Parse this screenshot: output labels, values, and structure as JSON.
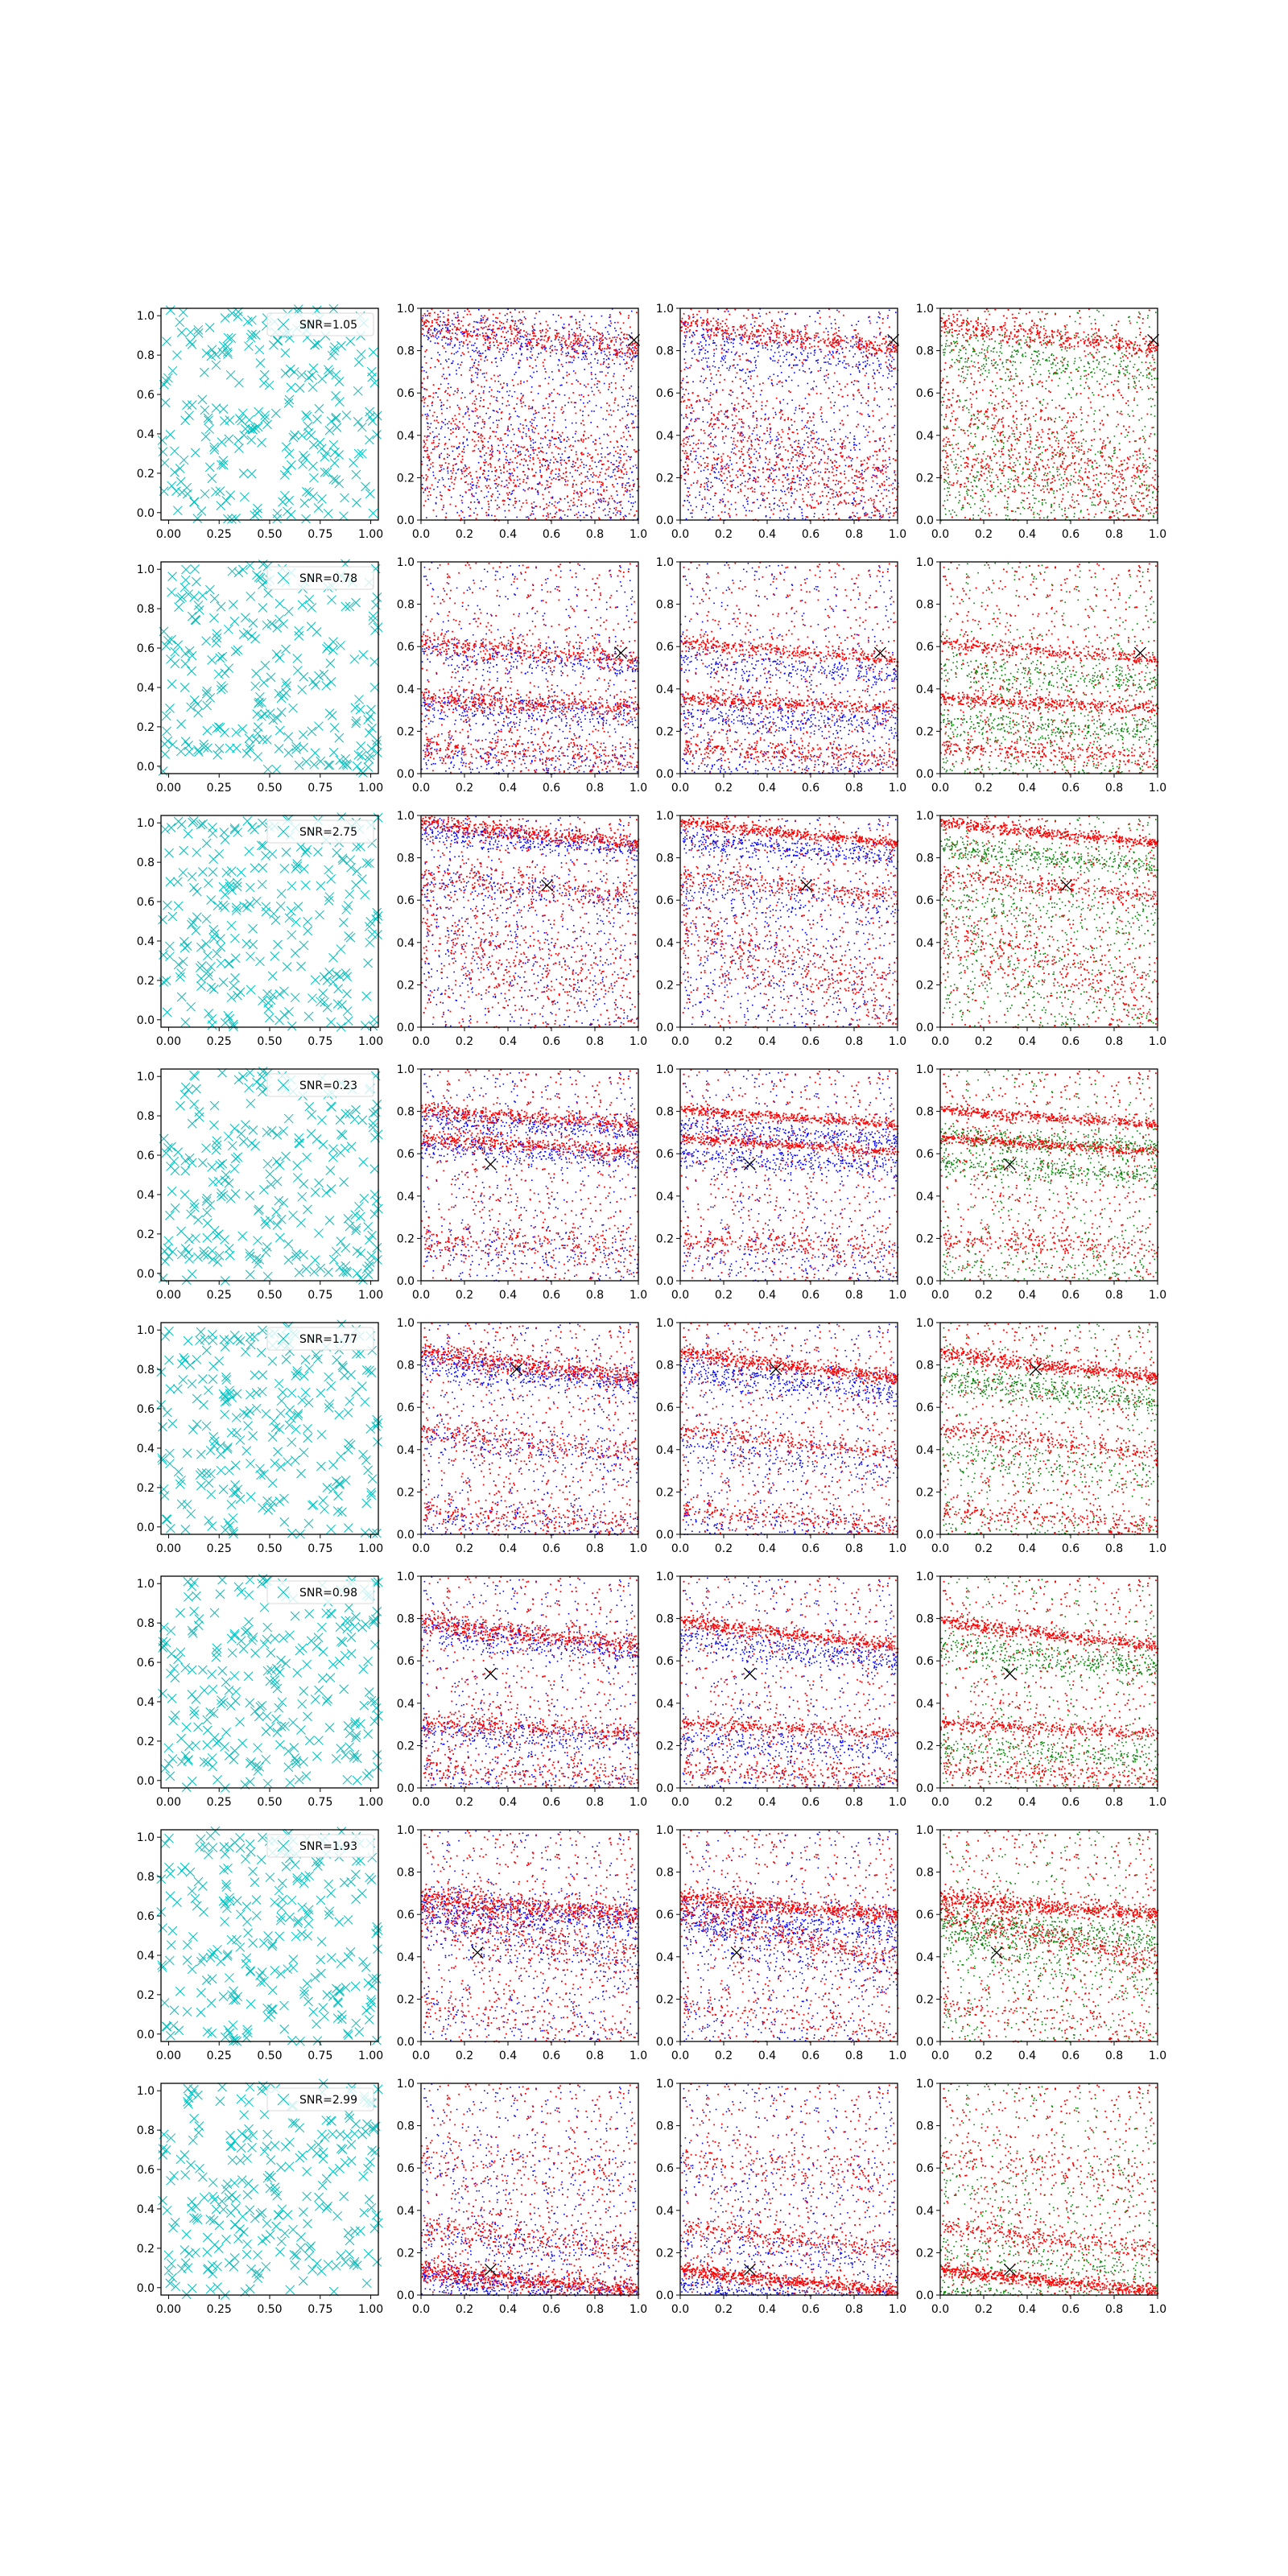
{
  "colors": {
    "noise_marker": "#00bfbf",
    "red_points": "#ff0000",
    "blue_points": "#0000ff",
    "green_points": "#008000",
    "source_marker": "#000000",
    "axes": "#000000"
  },
  "chart_data": {
    "type": "scatter",
    "grid": false,
    "layout": "8 rows x 4 columns of scatter panels",
    "columns": [
      {
        "kind": "scatter",
        "marker": "x",
        "color": "#00bfbf",
        "content": "uniform random detections",
        "legend": "top-right"
      },
      {
        "kind": "scatter",
        "marker": ".",
        "series_colors": [
          "#ff0000",
          "#0000ff"
        ],
        "source_marker": "x"
      },
      {
        "kind": "scatter",
        "marker": ".",
        "series_colors": [
          "#ff0000",
          "#0000ff"
        ],
        "source_marker": "x"
      },
      {
        "kind": "scatter",
        "marker": ".",
        "series_colors": [
          "#ff0000",
          "#008000"
        ],
        "source_marker": "x"
      }
    ],
    "xlim": [
      0,
      1
    ],
    "ylim": [
      0,
      1
    ],
    "col1_xticks": [
      "0.00",
      "0.25",
      "0.50",
      "0.75",
      "1.00"
    ],
    "other_xticks": [
      "0.0",
      "0.2",
      "0.4",
      "0.6",
      "0.8",
      "1.0"
    ],
    "yticks": [
      "0.0",
      "0.2",
      "0.4",
      "0.6",
      "0.8",
      "1.0"
    ],
    "rows": [
      {
        "snr_label": "SNR=1.05",
        "source": [
          0.98,
          0.85
        ],
        "bands": [
          {
            "intercept": 0.93,
            "slope": -0.12,
            "width": 0.03,
            "strength": 1.2
          },
          {
            "intercept": 0.55,
            "slope": -0.35,
            "width": 0.12,
            "strength": 1.0
          },
          {
            "intercept": 0.3,
            "slope": -0.25,
            "width": 0.1,
            "strength": 0.9
          }
        ]
      },
      {
        "snr_label": "SNR=0.78",
        "source": [
          0.92,
          0.57
        ],
        "bands": [
          {
            "intercept": 0.62,
            "slope": -0.08,
            "width": 0.02,
            "strength": 1.2
          },
          {
            "intercept": 0.36,
            "slope": -0.05,
            "width": 0.02,
            "strength": 1.6
          },
          {
            "intercept": 0.13,
            "slope": -0.05,
            "width": 0.03,
            "strength": 1.0
          }
        ]
      },
      {
        "snr_label": "SNR=2.75",
        "source": [
          0.58,
          0.67
        ],
        "bands": [
          {
            "intercept": 0.97,
            "slope": -0.1,
            "width": 0.015,
            "strength": 1.8
          },
          {
            "intercept": 0.72,
            "slope": -0.1,
            "width": 0.03,
            "strength": 1.0
          },
          {
            "intercept": 0.47,
            "slope": -0.35,
            "width": 0.1,
            "strength": 1.2
          }
        ]
      },
      {
        "snr_label": "SNR=0.23",
        "source": [
          0.32,
          0.55
        ],
        "bands": [
          {
            "intercept": 0.81,
            "slope": -0.07,
            "width": 0.015,
            "strength": 1.8
          },
          {
            "intercept": 0.68,
            "slope": -0.07,
            "width": 0.015,
            "strength": 1.8
          },
          {
            "intercept": 0.2,
            "slope": -0.05,
            "width": 0.03,
            "strength": 0.9
          }
        ]
      },
      {
        "snr_label": "SNR=1.77",
        "source": [
          0.44,
          0.78
        ],
        "bands": [
          {
            "intercept": 0.86,
            "slope": -0.12,
            "width": 0.02,
            "strength": 2.0
          },
          {
            "intercept": 0.5,
            "slope": -0.12,
            "width": 0.025,
            "strength": 1.0
          },
          {
            "intercept": 0.12,
            "slope": -0.08,
            "width": 0.03,
            "strength": 0.9
          }
        ]
      },
      {
        "snr_label": "SNR=0.98",
        "source": [
          0.32,
          0.54
        ],
        "bands": [
          {
            "intercept": 0.79,
            "slope": -0.12,
            "width": 0.02,
            "strength": 2.0
          },
          {
            "intercept": 0.31,
            "slope": -0.05,
            "width": 0.02,
            "strength": 1.4
          },
          {
            "intercept": 0.1,
            "slope": -0.05,
            "width": 0.03,
            "strength": 0.9
          }
        ]
      },
      {
        "snr_label": "SNR=1.93",
        "source": [
          0.26,
          0.42
        ],
        "bands": [
          {
            "intercept": 0.68,
            "slope": -0.08,
            "width": 0.025,
            "strength": 2.2
          },
          {
            "intercept": 0.62,
            "slope": -0.25,
            "width": 0.04,
            "strength": 1.2
          },
          {
            "intercept": 0.18,
            "slope": -0.15,
            "width": 0.04,
            "strength": 0.5
          }
        ]
      },
      {
        "snr_label": "SNR=2.99",
        "source": [
          0.32,
          0.12
        ],
        "bands": [
          {
            "intercept": 0.12,
            "slope": -0.1,
            "width": 0.02,
            "strength": 2.2
          },
          {
            "intercept": 0.33,
            "slope": -0.12,
            "width": 0.03,
            "strength": 0.9
          },
          {
            "intercept": 0.65,
            "slope": -0.1,
            "width": 0.04,
            "strength": 0.4
          }
        ]
      }
    ]
  }
}
